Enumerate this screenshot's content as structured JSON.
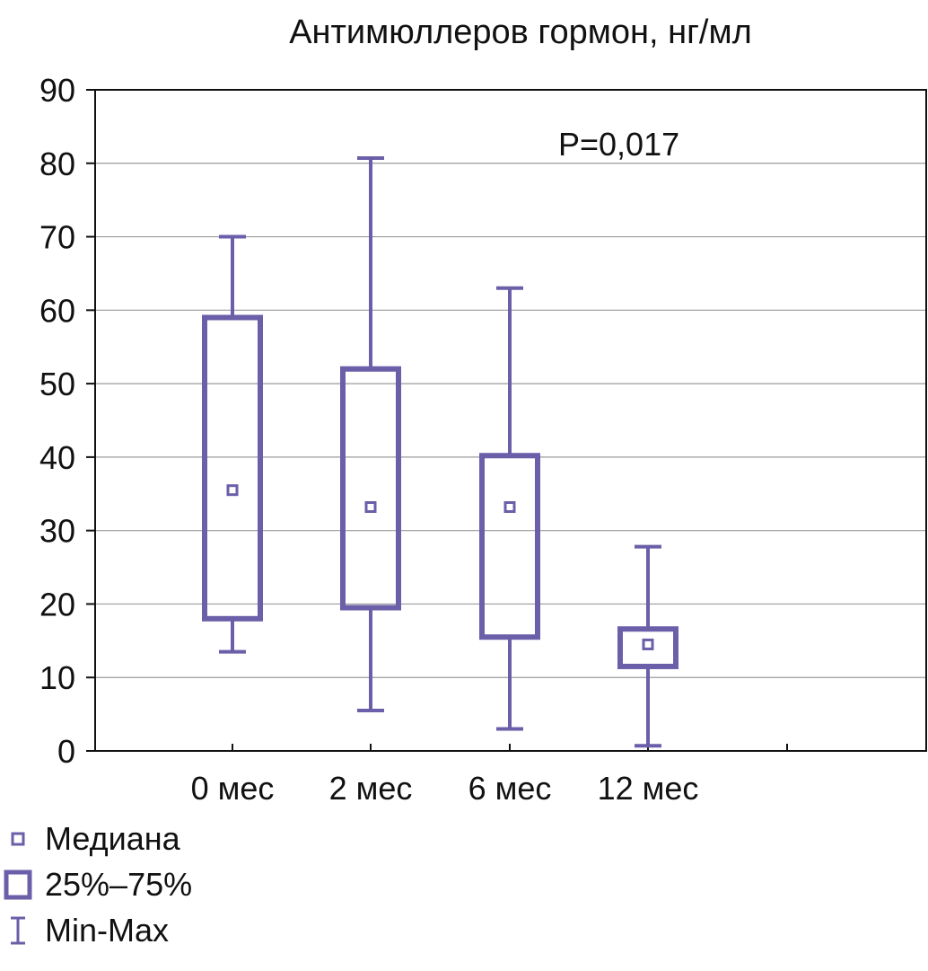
{
  "chart_data": {
    "type": "boxplot",
    "title": "Антимюллеров гормон, нг/мл",
    "xlabel": "",
    "ylabel": "",
    "ylim": [
      0,
      90
    ],
    "yticks": [
      "0",
      "10",
      "20",
      "30",
      "40",
      "50",
      "60",
      "70",
      "80",
      "90"
    ],
    "grid": true,
    "annotation": "P=0,017",
    "box_color": "#6a5fa8",
    "categories": [
      {
        "label": "0 мес",
        "min": 13.5,
        "q1": 18,
        "median": 35.5,
        "q3": 59,
        "max": 70
      },
      {
        "label": "2 мес",
        "min": 5.5,
        "q1": 19.5,
        "median": 33.2,
        "q3": 52,
        "max": 80.7
      },
      {
        "label": "6 мес",
        "min": 3,
        "q1": 15.5,
        "median": 33.2,
        "q3": 40.2,
        "max": 63
      },
      {
        "label": "12 мес",
        "min": 0.7,
        "q1": 11.5,
        "median": 14.5,
        "q3": 16.6,
        "max": 27.8
      }
    ],
    "legend": {
      "position": "bottom-left",
      "items": [
        {
          "symbol": "median",
          "label": "Медиана"
        },
        {
          "symbol": "box",
          "label": "25%–75%"
        },
        {
          "symbol": "whisker",
          "label": "Min-Max"
        }
      ]
    }
  }
}
